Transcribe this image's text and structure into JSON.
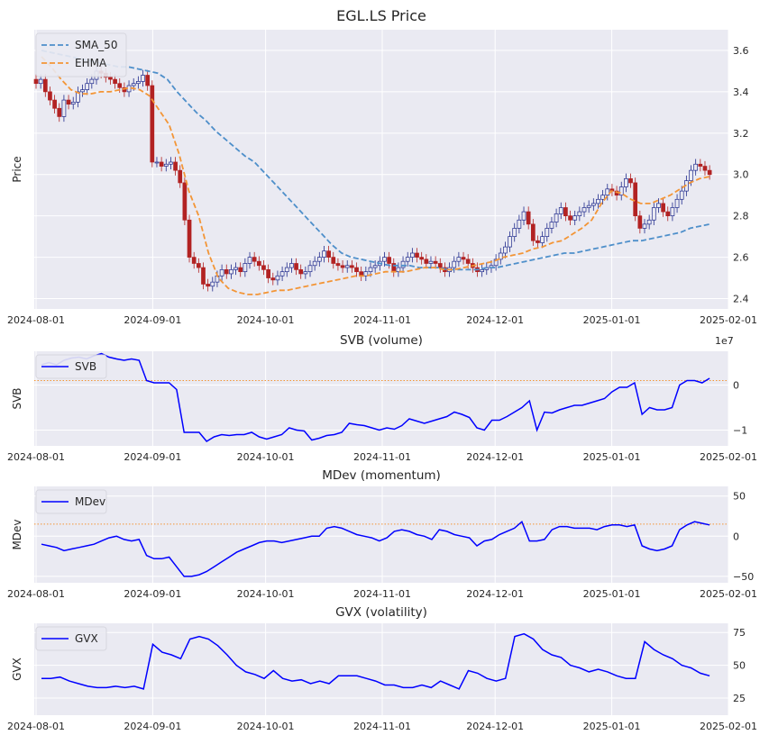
{
  "chart_data": [
    {
      "type": "candlestick",
      "title": "EGL.LS Price",
      "ylabel": "Price",
      "ylim": [
        2.35,
        3.7
      ],
      "yticks": [
        "2.4",
        "2.6",
        "2.8",
        "3.0",
        "3.2",
        "3.4",
        "3.6"
      ],
      "xticks": [
        "2024-08-01",
        "2024-09-01",
        "2024-10-01",
        "2024-11-01",
        "2024-12-01",
        "2025-01-01",
        "2025-02-01"
      ],
      "x_start": "2024-08-01",
      "x_end": "2025-01-27",
      "grid": true,
      "legend": "top-left",
      "up_color": "#1f2a8c",
      "down_color": "#b22222",
      "ohlc_close": [
        3.44,
        3.46,
        3.4,
        3.36,
        3.32,
        3.28,
        3.36,
        3.34,
        3.35,
        3.4,
        3.41,
        3.44,
        3.46,
        3.5,
        3.49,
        3.47,
        3.46,
        3.44,
        3.42,
        3.4,
        3.43,
        3.44,
        3.45,
        3.48,
        3.43,
        3.06,
        3.06,
        3.04,
        3.05,
        3.06,
        3.02,
        2.96,
        2.78,
        2.6,
        2.57,
        2.55,
        2.47,
        2.46,
        2.48,
        2.51,
        2.54,
        2.52,
        2.54,
        2.55,
        2.53,
        2.57,
        2.6,
        2.58,
        2.56,
        2.54,
        2.5,
        2.49,
        2.51,
        2.53,
        2.55,
        2.57,
        2.54,
        2.52,
        2.53,
        2.56,
        2.58,
        2.6,
        2.63,
        2.6,
        2.57,
        2.56,
        2.55,
        2.56,
        2.55,
        2.53,
        2.51,
        2.53,
        2.55,
        2.56,
        2.58,
        2.6,
        2.57,
        2.53,
        2.55,
        2.58,
        2.6,
        2.62,
        2.6,
        2.59,
        2.57,
        2.58,
        2.57,
        2.55,
        2.53,
        2.55,
        2.58,
        2.6,
        2.59,
        2.57,
        2.55,
        2.53,
        2.54,
        2.55,
        2.56,
        2.59,
        2.62,
        2.65,
        2.7,
        2.74,
        2.78,
        2.82,
        2.76,
        2.68,
        2.67,
        2.7,
        2.74,
        2.77,
        2.81,
        2.84,
        2.8,
        2.78,
        2.8,
        2.82,
        2.84,
        2.85,
        2.86,
        2.88,
        2.9,
        2.93,
        2.92,
        2.9,
        2.94,
        2.98,
        2.96,
        2.8,
        2.74,
        2.76,
        2.78,
        2.84,
        2.86,
        2.82,
        2.8,
        2.84,
        2.88,
        2.92,
        2.97,
        3.02,
        3.05,
        3.04,
        3.02,
        3.0
      ],
      "series": [
        {
          "name": "SMA_50",
          "color": "#4e8fca",
          "dashed": true,
          "values": [
            3.6,
            3.59,
            3.58,
            3.57,
            3.56,
            3.55,
            3.54,
            3.53,
            3.52,
            3.52,
            3.51,
            3.5,
            3.49,
            3.46,
            3.4,
            3.35,
            3.3,
            3.26,
            3.21,
            3.17,
            3.13,
            3.09,
            3.06,
            3.01,
            2.96,
            2.91,
            2.86,
            2.81,
            2.76,
            2.71,
            2.66,
            2.62,
            2.6,
            2.59,
            2.58,
            2.57,
            2.56,
            2.56,
            2.56,
            2.55,
            2.55,
            2.55,
            2.54,
            2.54,
            2.54,
            2.54,
            2.55,
            2.55,
            2.56,
            2.57,
            2.58,
            2.59,
            2.6,
            2.61,
            2.62,
            2.62,
            2.63,
            2.64,
            2.65,
            2.66,
            2.67,
            2.68,
            2.68,
            2.69,
            2.7,
            2.71,
            2.72,
            2.74,
            2.75,
            2.76
          ]
        },
        {
          "name": "EHMA",
          "color": "#f39536",
          "dashed": true,
          "values": [
            3.57,
            3.52,
            3.46,
            3.41,
            3.39,
            3.39,
            3.4,
            3.4,
            3.41,
            3.42,
            3.41,
            3.38,
            3.31,
            3.24,
            3.1,
            2.92,
            2.8,
            2.62,
            2.5,
            2.45,
            2.43,
            2.42,
            2.42,
            2.43,
            2.44,
            2.44,
            2.45,
            2.46,
            2.47,
            2.48,
            2.49,
            2.5,
            2.51,
            2.51,
            2.52,
            2.53,
            2.53,
            2.53,
            2.54,
            2.55,
            2.55,
            2.54,
            2.54,
            2.55,
            2.56,
            2.57,
            2.58,
            2.6,
            2.61,
            2.62,
            2.64,
            2.65,
            2.67,
            2.68,
            2.71,
            2.74,
            2.78,
            2.86,
            2.92,
            2.91,
            2.88,
            2.86,
            2.86,
            2.88,
            2.9,
            2.93,
            2.96,
            2.98,
            2.99
          ]
        }
      ]
    },
    {
      "type": "line",
      "title": "SVB (volume)",
      "ylabel": "SVB",
      "ylim": [
        -1.35,
        0.75
      ],
      "yticks": [
        "−1",
        "0"
      ],
      "scale_label": "1e7",
      "xticks": [
        "2024-08-01",
        "2024-09-01",
        "2024-10-01",
        "2024-11-01",
        "2024-12-01",
        "2025-01-01",
        "2025-02-01"
      ],
      "reference_line": 0.1,
      "grid": true,
      "legend": "top-left",
      "series": [
        {
          "name": "SVB",
          "color": "#0000ff",
          "values": [
            0.45,
            0.5,
            0.45,
            0.55,
            0.6,
            0.62,
            0.58,
            0.65,
            0.7,
            0.62,
            0.58,
            0.55,
            0.58,
            0.55,
            0.1,
            0.05,
            0.05,
            0.05,
            -0.1,
            -1.05,
            -1.05,
            -1.05,
            -1.25,
            -1.15,
            -1.1,
            -1.12,
            -1.1,
            -1.1,
            -1.05,
            -1.15,
            -1.2,
            -1.15,
            -1.1,
            -0.95,
            -1.0,
            -1.02,
            -1.22,
            -1.18,
            -1.12,
            -1.1,
            -1.05,
            -0.85,
            -0.88,
            -0.9,
            -0.95,
            -1.0,
            -0.95,
            -0.98,
            -0.9,
            -0.75,
            -0.8,
            -0.85,
            -0.8,
            -0.75,
            -0.7,
            -0.6,
            -0.65,
            -0.72,
            -0.95,
            -1.0,
            -0.78,
            -0.78,
            -0.7,
            -0.6,
            -0.5,
            -0.35,
            -1.0,
            -0.6,
            -0.62,
            -0.55,
            -0.5,
            -0.45,
            -0.45,
            -0.4,
            -0.35,
            -0.3,
            -0.15,
            -0.05,
            -0.05,
            0.05,
            -0.65,
            -0.5,
            -0.55,
            -0.55,
            -0.5,
            0.0,
            0.1,
            0.1,
            0.05,
            0.15
          ]
        }
      ]
    },
    {
      "type": "line",
      "title": "MDev (momentum)",
      "ylabel": "MDev",
      "ylim": [
        -58,
        62
      ],
      "yticks": [
        "−50",
        "0",
        "50"
      ],
      "xticks": [
        "2024-08-01",
        "2024-09-01",
        "2024-10-01",
        "2024-11-01",
        "2024-12-01",
        "2025-01-01",
        "2025-02-01"
      ],
      "reference_line": 15,
      "grid": true,
      "legend": "top-left",
      "series": [
        {
          "name": "MDev",
          "color": "#0000ff",
          "values": [
            -10,
            -12,
            -14,
            -18,
            -16,
            -14,
            -12,
            -10,
            -6,
            -2,
            0,
            -4,
            -6,
            -4,
            -24,
            -28,
            -28,
            -26,
            -38,
            -50,
            -50,
            -48,
            -44,
            -38,
            -32,
            -26,
            -20,
            -16,
            -12,
            -8,
            -6,
            -6,
            -8,
            -6,
            -4,
            -2,
            0,
            0,
            10,
            12,
            10,
            6,
            2,
            0,
            -2,
            -6,
            -2,
            6,
            8,
            6,
            2,
            0,
            -4,
            8,
            6,
            2,
            0,
            -2,
            -12,
            -6,
            -4,
            2,
            6,
            10,
            18,
            -6,
            -6,
            -4,
            8,
            12,
            12,
            10,
            10,
            10,
            8,
            12,
            14,
            14,
            12,
            14,
            -12,
            -16,
            -18,
            -16,
            -12,
            8,
            14,
            18,
            16,
            14
          ]
        }
      ]
    },
    {
      "type": "line",
      "title": "GVX (volatility)",
      "ylabel": "GVX",
      "ylim": [
        12,
        82
      ],
      "yticks": [
        "25",
        "50",
        "75"
      ],
      "xticks": [
        "2024-08-01",
        "2024-09-01",
        "2024-10-01",
        "2024-11-01",
        "2024-12-01",
        "2025-01-01",
        "2025-02-01"
      ],
      "grid": true,
      "legend": "top-left",
      "series": [
        {
          "name": "GVX",
          "color": "#0000ff",
          "values": [
            40,
            40,
            41,
            38,
            36,
            34,
            33,
            33,
            34,
            33,
            34,
            32,
            66,
            60,
            58,
            55,
            70,
            72,
            70,
            65,
            58,
            50,
            45,
            43,
            40,
            46,
            40,
            38,
            39,
            36,
            38,
            36,
            42,
            42,
            42,
            40,
            38,
            35,
            35,
            33,
            33,
            35,
            33,
            38,
            35,
            32,
            46,
            44,
            40,
            38,
            40,
            72,
            74,
            70,
            62,
            58,
            56,
            50,
            48,
            45,
            47,
            45,
            42,
            40,
            40,
            68,
            62,
            58,
            55,
            50,
            48,
            44,
            42
          ]
        }
      ]
    }
  ]
}
